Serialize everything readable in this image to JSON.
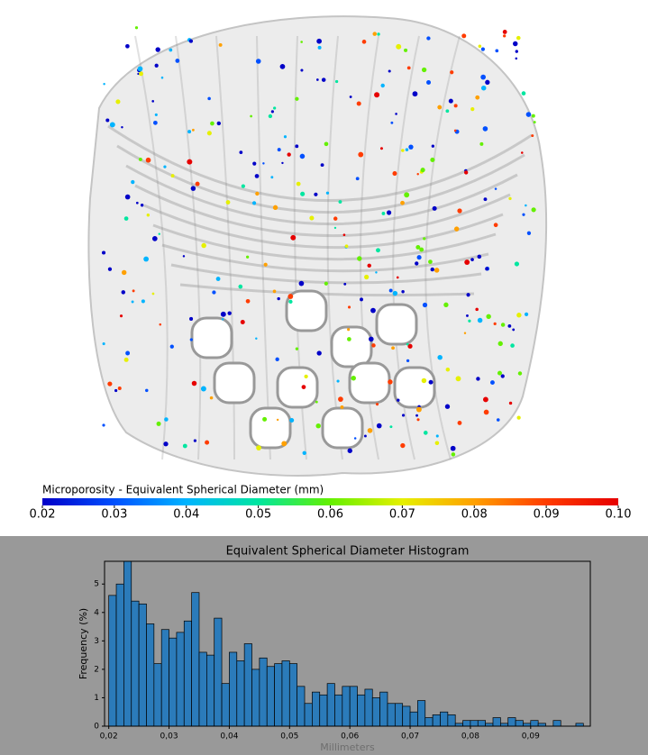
{
  "chart_data": [
    {
      "type": "colorbar",
      "label": "Microporosity - Equivalent Spherical Diameter (mm)",
      "colors": [
        "#0000c8",
        "#0050ff",
        "#00b4ff",
        "#00e6a0",
        "#64f000",
        "#e6f000",
        "#ffa000",
        "#ff3c00",
        "#e60000"
      ],
      "xlim": [
        0.02,
        0.1
      ],
      "xticks": [
        0.02,
        0.03,
        0.04,
        0.05,
        0.06,
        0.07,
        0.08,
        0.09,
        {
          "value": 0.1,
          "label": "0.10"
        }
      ]
    },
    {
      "type": "histogram",
      "title": "Equivalent Spherical Diameter Histogram",
      "xlabel": "Millimeters",
      "ylabel": "Frequency (%)",
      "color": "#2b7bba",
      "bins": [
        0.02,
        0.02125,
        0.0225,
        0.02375,
        0.025,
        0.02625,
        0.0275,
        0.02875,
        0.03,
        0.03125,
        0.0325,
        0.03375,
        0.035,
        0.03625,
        0.0375,
        0.03875,
        0.04,
        0.04125,
        0.0425,
        0.04375,
        0.045,
        0.04625,
        0.0475,
        0.04875,
        0.05,
        0.05125,
        0.0525,
        0.05375,
        0.055,
        0.05625,
        0.0575,
        0.05875,
        0.06,
        0.06125,
        0.0625,
        0.06375,
        0.065,
        0.06625,
        0.0675,
        0.06875,
        0.07,
        0.07125,
        0.0725,
        0.07375,
        0.075,
        0.07625,
        0.0775,
        0.07875,
        0.08,
        0.08125,
        0.0825,
        0.08375,
        0.085,
        0.08625,
        0.0875,
        0.08875,
        0.09,
        0.09125,
        0.0925,
        0.09375,
        0.095,
        0.09625,
        0.0975,
        0.09875
      ],
      "values": [
        4.6,
        5.0,
        5.8,
        4.4,
        4.3,
        3.6,
        2.2,
        3.4,
        3.1,
        3.3,
        3.7,
        4.7,
        2.6,
        2.5,
        3.8,
        1.5,
        2.6,
        2.3,
        2.9,
        2.0,
        2.4,
        2.1,
        2.2,
        2.3,
        2.2,
        1.4,
        0.8,
        1.2,
        1.1,
        1.5,
        1.1,
        1.4,
        1.4,
        1.1,
        1.3,
        1.0,
        1.2,
        0.8,
        0.8,
        0.7,
        0.5,
        0.9,
        0.3,
        0.4,
        0.5,
        0.4,
        0.1,
        0.2,
        0.2,
        0.2,
        0.1,
        0.3,
        0.1,
        0.3,
        0.2,
        0.1,
        0.2,
        0.1,
        0.0,
        0.2,
        0.0,
        0.0,
        0.1
      ],
      "xlim": [
        0.0193,
        0.0999
      ],
      "ylim": [
        0,
        5.8
      ],
      "xticks": [
        {
          "value": 0.02,
          "label": "0,02"
        },
        {
          "value": 0.03,
          "label": "0,03"
        },
        {
          "value": 0.04,
          "label": "0,04"
        },
        {
          "value": 0.05,
          "label": "0,05"
        },
        {
          "value": 0.06,
          "label": "0,06"
        },
        {
          "value": 0.07,
          "label": "0,07"
        },
        {
          "value": 0.08,
          "label": "0,08"
        },
        {
          "value": 0.09,
          "label": "0,09"
        }
      ],
      "yticks": [
        0,
        1,
        2,
        3,
        4,
        5
      ]
    }
  ]
}
